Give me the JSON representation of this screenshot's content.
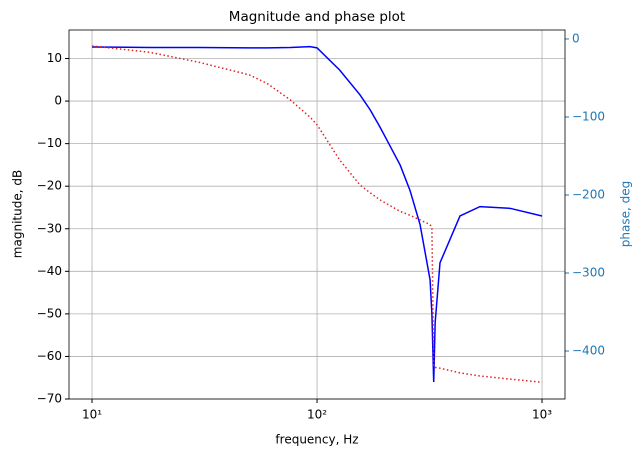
{
  "chart_data": {
    "type": "line",
    "title": "Magnitude and phase plot",
    "x_label": "frequency, Hz",
    "y_label": "magnitude, dB",
    "y2_label": "phase, deg",
    "x_scale": "log",
    "grid": true,
    "y2_axis_color": "#1f77b4",
    "x": [
      10,
      18,
      30,
      50,
      60,
      76,
      93,
      100,
      126,
      155,
      172,
      190,
      234,
      259,
      287,
      318,
      324,
      330,
      335,
      352,
      432,
      530,
      721,
      1000
    ],
    "series": [
      {
        "name": "magnitude",
        "color": "#0000ff",
        "linestyle": "solid",
        "values": [
          12.7,
          12.6,
          12.6,
          12.5,
          12.5,
          12.6,
          12.8,
          12.5,
          7.3,
          1.5,
          -2,
          -6,
          -15,
          -21,
          -29,
          -42,
          -50,
          -66,
          -52,
          -38,
          -27,
          -24.8,
          -25.2,
          -27
        ]
      },
      {
        "name": "phase",
        "color": "#dd2222",
        "linestyle": "dotted",
        "axis": "y2",
        "values": [
          -9,
          -17,
          -30,
          -46,
          -57,
          -78,
          -100,
          -110,
          -155,
          -187,
          -197,
          -206,
          -221,
          -226,
          -232,
          -238,
          -242,
          -420,
          -421,
          -422,
          -428,
          -432,
          -436,
          -440
        ]
      }
    ],
    "xlim": [
      7.9,
      1265
    ],
    "xticks": [
      {
        "value": 10,
        "label": "10¹"
      },
      {
        "value": 100,
        "label": "10²"
      },
      {
        "value": 1000,
        "label": "10³"
      }
    ],
    "ylim": [
      -70,
      16.7
    ],
    "yticks": [
      {
        "value": -70,
        "label": "−70"
      },
      {
        "value": -60,
        "label": "−60"
      },
      {
        "value": -50,
        "label": "−50"
      },
      {
        "value": -40,
        "label": "−40"
      },
      {
        "value": -30,
        "label": "−30"
      },
      {
        "value": -20,
        "label": "−20"
      },
      {
        "value": -10,
        "label": "−10"
      },
      0,
      10
    ],
    "y2lim": [
      -461.5,
      11.5
    ],
    "y2ticks": [
      {
        "value": -400,
        "label": "−400"
      },
      {
        "value": -300,
        "label": "−300"
      },
      {
        "value": -200,
        "label": "−200"
      },
      {
        "value": -100,
        "label": "−100"
      },
      0
    ]
  }
}
